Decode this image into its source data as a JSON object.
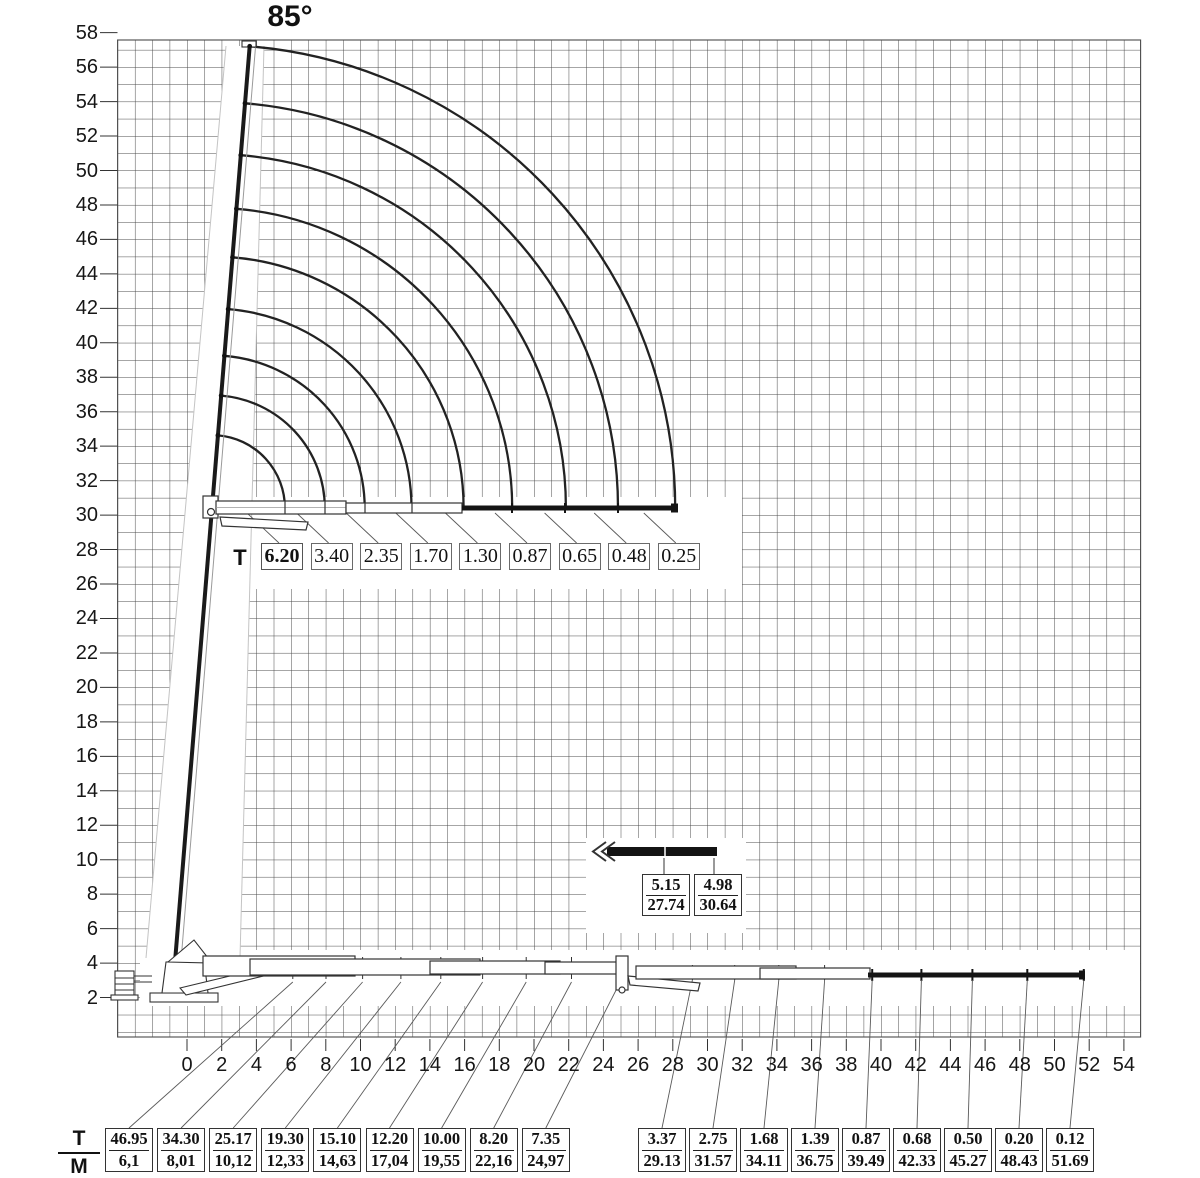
{
  "title": {
    "angle": "85°"
  },
  "axes": {
    "y": [
      "58",
      "56",
      "54",
      "52",
      "50",
      "48",
      "46",
      "44",
      "42",
      "40",
      "38",
      "36",
      "34",
      "32",
      "30",
      "28",
      "26",
      "24",
      "22",
      "20",
      "18",
      "16",
      "14",
      "12",
      "10",
      "8",
      "6",
      "4",
      "2"
    ],
    "x": [
      "0",
      "2",
      "4",
      "6",
      "8",
      "10",
      "12",
      "14",
      "16",
      "18",
      "20",
      "22",
      "24",
      "26",
      "28",
      "30",
      "32",
      "34",
      "36",
      "38",
      "40",
      "42",
      "44",
      "46",
      "48",
      "50",
      "52",
      "54"
    ]
  },
  "upper_row": {
    "t_label": "T",
    "boxes": [
      "6.20",
      "3.40",
      "2.35",
      "1.70",
      "1.30",
      "0.87",
      "0.65",
      "0.48",
      "0.25"
    ]
  },
  "inset": {
    "boxes": [
      {
        "t": "5.15",
        "m": "27.74"
      },
      {
        "t": "4.98",
        "m": "30.64"
      }
    ]
  },
  "legend": {
    "t": "T",
    "m": "M"
  },
  "table": [
    {
      "t": "46.95",
      "m": "6,1"
    },
    {
      "t": "34.30",
      "m": "8,01"
    },
    {
      "t": "25.17",
      "m": "10,12"
    },
    {
      "t": "19.30",
      "m": "12,33"
    },
    {
      "t": "15.10",
      "m": "14,63"
    },
    {
      "t": "12.20",
      "m": "17,04"
    },
    {
      "t": "10.00",
      "m": "19,55"
    },
    {
      "t": "8.20",
      "m": "22,16"
    },
    {
      "t": "7.35",
      "m": "24,97"
    },
    {
      "t": "3.37",
      "m": "29.13"
    },
    {
      "t": "2.75",
      "m": "31.57"
    },
    {
      "t": "1.68",
      "m": "34.11"
    },
    {
      "t": "1.39",
      "m": "36.75"
    },
    {
      "t": "0.87",
      "m": "39.49"
    },
    {
      "t": "0.68",
      "m": "42.33"
    },
    {
      "t": "0.50",
      "m": "45.27"
    },
    {
      "t": "0.20",
      "m": "48.43"
    },
    {
      "t": "0.12",
      "m": "51.69"
    }
  ],
  "colors": {
    "ink": "#1a1a1a",
    "grid": "#4a4a4a",
    "leader": "#5a5a5a",
    "faint": "#c4c4c4",
    "boom_dark": "#141414"
  },
  "chart_data": {
    "type": "line",
    "title": "85°",
    "subtitle": "Crane load chart: capacities (T) vs reach (M), boom at 85°",
    "x_axis": {
      "unit": "M",
      "ticks": [
        0,
        2,
        4,
        6,
        8,
        10,
        12,
        14,
        16,
        18,
        20,
        22,
        24,
        26,
        28,
        30,
        32,
        34,
        36,
        38,
        40,
        42,
        44,
        46,
        48,
        50,
        52,
        54
      ]
    },
    "y_axis": {
      "unit": "M",
      "ticks": [
        2,
        4,
        6,
        8,
        10,
        12,
        14,
        16,
        18,
        20,
        22,
        24,
        26,
        28,
        30,
        32,
        34,
        36,
        38,
        40,
        42,
        44,
        46,
        48,
        50,
        52,
        54,
        56,
        58
      ]
    },
    "grid": true,
    "boom_angle_deg": 85,
    "boom_tip_height_m": 56.4,
    "jib_pivot_height_m": 30.5,
    "jib_horizontal_capacities_t": [
      6.2,
      3.4,
      2.35,
      1.7,
      1.3,
      0.87,
      0.65,
      0.48,
      0.25
    ],
    "jib_arc_extensions_m": [
      4.2,
      6.5,
      8.8,
      11.5,
      14.5,
      17.3,
      20.4,
      23.4,
      26.7
    ],
    "main_boom_capacities": [
      {
        "t": 46.95,
        "reach_m": 6.1
      },
      {
        "t": 34.3,
        "reach_m": 8.01
      },
      {
        "t": 25.17,
        "reach_m": 10.12
      },
      {
        "t": 19.3,
        "reach_m": 12.33
      },
      {
        "t": 15.1,
        "reach_m": 14.63
      },
      {
        "t": 12.2,
        "reach_m": 17.04
      },
      {
        "t": 10.0,
        "reach_m": 19.55
      },
      {
        "t": 8.2,
        "reach_m": 22.16
      },
      {
        "t": 7.35,
        "reach_m": 24.97
      }
    ],
    "jib_capacities": [
      {
        "t": 3.37,
        "reach_m": 29.13
      },
      {
        "t": 2.75,
        "reach_m": 31.57
      },
      {
        "t": 1.68,
        "reach_m": 34.11
      },
      {
        "t": 1.39,
        "reach_m": 36.75
      },
      {
        "t": 0.87,
        "reach_m": 39.49
      },
      {
        "t": 0.68,
        "reach_m": 42.33
      },
      {
        "t": 0.5,
        "reach_m": 45.27
      },
      {
        "t": 0.2,
        "reach_m": 48.43
      },
      {
        "t": 0.12,
        "reach_m": 51.69
      }
    ],
    "inset_capacities": [
      {
        "t": 5.15,
        "reach_m": 27.74
      },
      {
        "t": 4.98,
        "reach_m": 30.64
      }
    ]
  }
}
